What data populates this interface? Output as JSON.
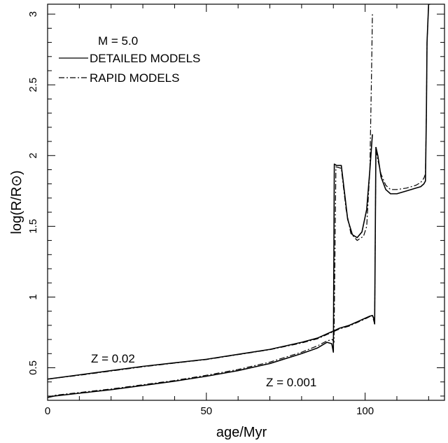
{
  "chart_data": {
    "type": "line",
    "xlabel": "age/Myr",
    "ylabel": "log(R/R⊙)",
    "xlim": [
      0,
      125
    ],
    "ylim": [
      0.27,
      3.07
    ],
    "x_ticks": [
      "0",
      "50",
      "100"
    ],
    "y_ticks": [
      "0.5",
      "1",
      "1.5",
      "2",
      "2.5",
      "3"
    ],
    "legend": {
      "position": "top-left",
      "title": "M = 5.0",
      "entries": [
        "DETAILED MODELS",
        "RAPID MODELS"
      ]
    },
    "annotations": [
      "Z = 0.02",
      "Z = 0.001"
    ],
    "series": [
      {
        "name": "DETAILED MODELS",
        "style": "solid",
        "metallicity": "Z = 0.02",
        "x": [
          0,
          10,
          20,
          30,
          40,
          50,
          60,
          70,
          80,
          85,
          88,
          90,
          92,
          95,
          98,
          100,
          101.5,
          102.3,
          102.7,
          103,
          103.4
        ],
        "y": [
          0.42,
          0.45,
          0.48,
          0.51,
          0.535,
          0.56,
          0.595,
          0.63,
          0.68,
          0.71,
          0.74,
          0.76,
          0.78,
          0.8,
          0.83,
          0.85,
          0.865,
          0.87,
          0.85,
          0.81,
          2.06
        ]
      },
      {
        "name": "RAPID MODELS",
        "style": "dashdot",
        "metallicity": "Z = 0.02",
        "x": [
          0,
          10,
          20,
          30,
          40,
          50,
          60,
          70,
          80,
          85,
          88,
          90,
          92,
          95,
          98,
          100,
          101.5,
          102.3,
          102.5,
          103,
          103.4
        ],
        "y": [
          0.42,
          0.447,
          0.477,
          0.507,
          0.533,
          0.558,
          0.593,
          0.628,
          0.675,
          0.705,
          0.735,
          0.755,
          0.775,
          0.795,
          0.825,
          0.845,
          0.862,
          0.868,
          0.85,
          0.81,
          2.04
        ]
      },
      {
        "name": "DETAILED MODELS",
        "style": "solid",
        "metallicity": "Z = 0.001",
        "x": [
          0,
          2,
          10,
          20,
          30,
          40,
          50,
          60,
          70,
          80,
          85,
          88,
          89.5,
          90,
          90.3,
          91,
          92.5,
          93.5,
          94.5,
          96,
          97.5,
          99,
          100.5,
          101.5,
          102.3
        ],
        "y": [
          0.29,
          0.3,
          0.32,
          0.345,
          0.375,
          0.405,
          0.44,
          0.48,
          0.53,
          0.6,
          0.64,
          0.68,
          0.67,
          0.61,
          1.94,
          1.93,
          1.93,
          1.74,
          1.55,
          1.44,
          1.42,
          1.46,
          1.62,
          1.9,
          2.15
        ]
      },
      {
        "name": "RAPID MODELS",
        "style": "dashdot",
        "metallicity": "Z = 0.001",
        "x": [
          0,
          2,
          10,
          20,
          30,
          40,
          50,
          60,
          70,
          80,
          85,
          88,
          89.7,
          90.2,
          90.8,
          92.5,
          94,
          95.5,
          97.5,
          99.5,
          100.5,
          101.5,
          102,
          102.3
        ],
        "y": [
          0.29,
          0.305,
          0.325,
          0.35,
          0.38,
          0.41,
          0.447,
          0.488,
          0.54,
          0.61,
          0.655,
          0.69,
          0.7,
          0.68,
          1.92,
          1.91,
          1.62,
          1.45,
          1.4,
          1.43,
          1.5,
          1.9,
          2.55,
          3.0
        ]
      },
      {
        "name": "DETAILED MODELS",
        "style": "solid",
        "metallicity": "Z = 0.02",
        "x": [
          103.4,
          104,
          105,
          106.5,
          108,
          110,
          113,
          116,
          117.5,
          118.5,
          119,
          119.3,
          119.5,
          120,
          120.5
        ],
        "y": [
          2.06,
          2.0,
          1.85,
          1.76,
          1.73,
          1.73,
          1.75,
          1.77,
          1.78,
          1.8,
          1.82,
          2.3,
          2.8,
          3.07,
          3.07
        ]
      },
      {
        "name": "RAPID MODELS",
        "style": "dashdot",
        "metallicity": "Z = 0.02",
        "x": [
          103.4,
          104,
          105,
          106.5,
          108,
          110,
          113,
          116,
          117.5,
          118.5,
          119,
          119.3,
          119.5,
          120,
          120.5
        ],
        "y": [
          2.04,
          1.97,
          1.87,
          1.79,
          1.76,
          1.76,
          1.77,
          1.79,
          1.81,
          1.84,
          1.87,
          2.3,
          2.8,
          3.07,
          3.07
        ]
      }
    ]
  }
}
